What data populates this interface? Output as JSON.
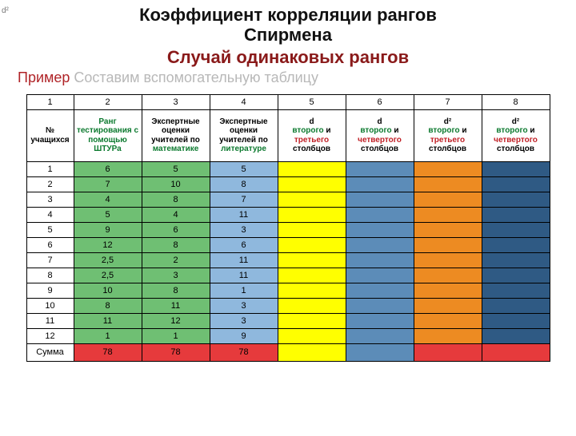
{
  "corner": "d²",
  "title_line1": "Коэффициент корреляции рангов",
  "title_line2": "Спирмена",
  "subtitle": "Случай одинаковых рангов",
  "prompt_red": "Пример",
  "prompt_gray": "  Составим вспомогательную таблицу",
  "colors": {
    "green_fill": "#6fbf73",
    "blue_fill": "#8fb8dd",
    "yellow_fill": "#ffff00",
    "steel_fill": "#5c8cb8",
    "orange_fill": "#ed8b22",
    "navy_fill": "#2f5a84",
    "red_fill": "#e63a3c"
  },
  "headers": {
    "nums": [
      "1",
      "2",
      "3",
      "4",
      "5",
      "6",
      "7",
      "8"
    ],
    "c1": "№ учащихся",
    "c2_g": "Ранг тестирования с помощью ШТУРа",
    "c3": "Экспертные оценки учителей по",
    "c3_g": "математике",
    "c4": "Экспертные оценки учителей по",
    "c4_g": "литературе",
    "c5_a": "d",
    "c5_g": "второго",
    "c5_and": " и ",
    "c5_r": "третьего",
    "c5_tail": " столбцов",
    "c6_a": "d",
    "c6_g": "второго",
    "c6_and": " и ",
    "c6_r": "четвертого",
    "c6_tail": " столбцов",
    "c7_a": "d²",
    "c7_g": "второго",
    "c7_and": " и ",
    "c7_r": "третьего",
    "c7_tail": " столбцов",
    "c8_a": "d²",
    "c8_g": "второго",
    "c8_and": " и ",
    "c8_r": "четвертого",
    "c8_tail": " столбцов"
  },
  "rows": [
    {
      "n": "1",
      "a": "6",
      "b": "5",
      "c": "5"
    },
    {
      "n": "2",
      "a": "7",
      "b": "10",
      "c": "8"
    },
    {
      "n": "3",
      "a": "4",
      "b": "8",
      "c": "7"
    },
    {
      "n": "4",
      "a": "5",
      "b": "4",
      "c": "11"
    },
    {
      "n": "5",
      "a": "9",
      "b": "6",
      "c": "3"
    },
    {
      "n": "6",
      "a": "12",
      "b": "8",
      "c": "6"
    },
    {
      "n": "7",
      "a": "2,5",
      "b": "2",
      "c": "11"
    },
    {
      "n": "8",
      "a": "2,5",
      "b": "3",
      "c": "11"
    },
    {
      "n": "9",
      "a": "10",
      "b": "8",
      "c": "1"
    },
    {
      "n": "10",
      "a": "8",
      "b": "11",
      "c": "3"
    },
    {
      "n": "11",
      "a": "11",
      "b": "12",
      "c": "3"
    },
    {
      "n": "12",
      "a": "1",
      "b": "1",
      "c": "9"
    }
  ],
  "sum": {
    "label": "Сумма",
    "a": "78",
    "b": "78",
    "c": "78"
  }
}
